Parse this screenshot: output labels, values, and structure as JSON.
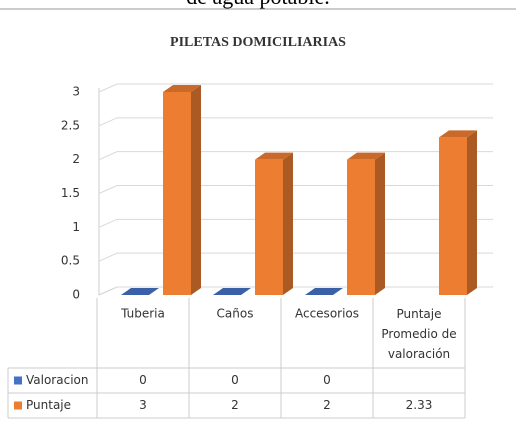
{
  "header_text": "de agua potable.",
  "chart_data": {
    "type": "bar3d",
    "title": "PILETAS DOMICILIARIAS",
    "categories": [
      "Tuberia",
      "Caños",
      "Accesorios",
      "Puntaje Promedio de valoración"
    ],
    "series": [
      {
        "name": "Valoracion",
        "color": "#4472c4",
        "values": [
          0,
          0,
          0,
          null
        ]
      },
      {
        "name": "Puntaje",
        "color": "#ed7d31",
        "values": [
          3,
          2,
          2,
          2.33
        ]
      }
    ],
    "ylim": [
      0,
      3
    ],
    "yticks": [
      0,
      0.5,
      1,
      1.5,
      2,
      2.5,
      3
    ],
    "grid": true,
    "data_table": true
  }
}
